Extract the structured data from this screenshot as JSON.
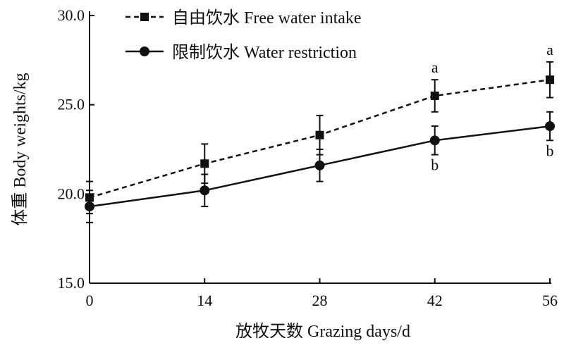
{
  "chart_data": {
    "type": "line",
    "xlabel": "放牧天数 Grazing days/d",
    "ylabel": "体重 Body weights/kg",
    "x": [
      0,
      14,
      28,
      42,
      56
    ],
    "xticks": [
      "0",
      "14",
      "28",
      "42",
      "56"
    ],
    "xlim": [
      0,
      56
    ],
    "ylim": [
      15.0,
      30.0
    ],
    "yticks": [
      "15.0",
      "20.0",
      "25.0",
      "30.0"
    ],
    "grid": false,
    "legend_position": "top-left",
    "series": [
      {
        "name": "自由饮水 Free water intake",
        "marker": "square",
        "line_style": "dashed",
        "color": "#111111",
        "values": [
          19.8,
          21.7,
          23.3,
          25.5,
          26.4
        ],
        "error": [
          0.9,
          1.1,
          1.1,
          0.9,
          1.0
        ],
        "labels": [
          "",
          "",
          "",
          "a",
          "a"
        ]
      },
      {
        "name": "限制饮水 Water restriction",
        "marker": "circle",
        "line_style": "solid",
        "color": "#111111",
        "values": [
          19.3,
          20.2,
          21.6,
          23.0,
          23.8
        ],
        "error": [
          0.9,
          0.9,
          0.9,
          0.8,
          0.8
        ],
        "labels": [
          "",
          "",
          "",
          "b",
          "b"
        ]
      }
    ]
  }
}
